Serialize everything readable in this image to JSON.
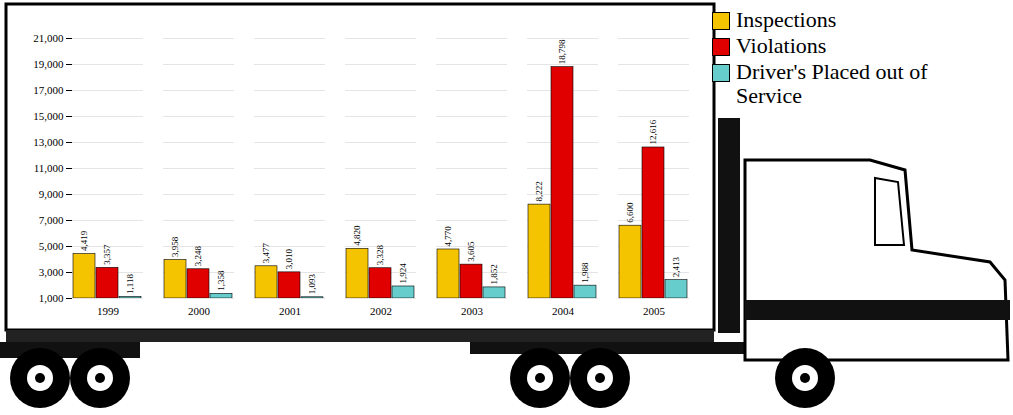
{
  "chart_data": {
    "type": "bar",
    "categories": [
      "1999",
      "2000",
      "2001",
      "2002",
      "2003",
      "2004",
      "2005"
    ],
    "series": [
      {
        "name": "Inspections",
        "color": "#f5c400",
        "values": [
          4419,
          3958,
          3477,
          4820,
          4770,
          8222,
          6600
        ],
        "value_labels": [
          "4,419",
          "3,958",
          "3,477",
          "4,820",
          "4,770",
          "8,222",
          "6,600"
        ]
      },
      {
        "name": "Violations",
        "color": "#e00000",
        "values": [
          3357,
          3248,
          3010,
          3328,
          3605,
          18798,
          12616
        ],
        "value_labels": [
          "3,357",
          "3,248",
          "3,010",
          "3,328",
          "3,605",
          "18,798",
          "12,616"
        ]
      },
      {
        "name": "Driver's Placed out of Service",
        "color": "#66cccc",
        "values": [
          1118,
          1358,
          1093,
          1924,
          1852,
          1988,
          2413
        ],
        "value_labels": [
          "1,118",
          "1,358",
          "1,093",
          "1,924",
          "1,852",
          "1,988",
          "2,413"
        ]
      }
    ],
    "ylim": [
      1000,
      21000
    ],
    "yticks": [
      {
        "value": 1000,
        "label": "1,000"
      },
      {
        "value": 3000,
        "label": "3,000"
      },
      {
        "value": 5000,
        "label": "5,000"
      },
      {
        "value": 7000,
        "label": "7,000"
      },
      {
        "value": 9000,
        "label": "9,000"
      },
      {
        "value": 11000,
        "label": "11,000"
      },
      {
        "value": 13000,
        "label": "13,000"
      },
      {
        "value": 15000,
        "label": "15,000"
      },
      {
        "value": 17000,
        "label": "17,000"
      },
      {
        "value": 19000,
        "label": "19,000"
      },
      {
        "value": 21000,
        "label": "21,000"
      }
    ],
    "grid": true,
    "legend": "top-right",
    "data_labels": true
  }
}
